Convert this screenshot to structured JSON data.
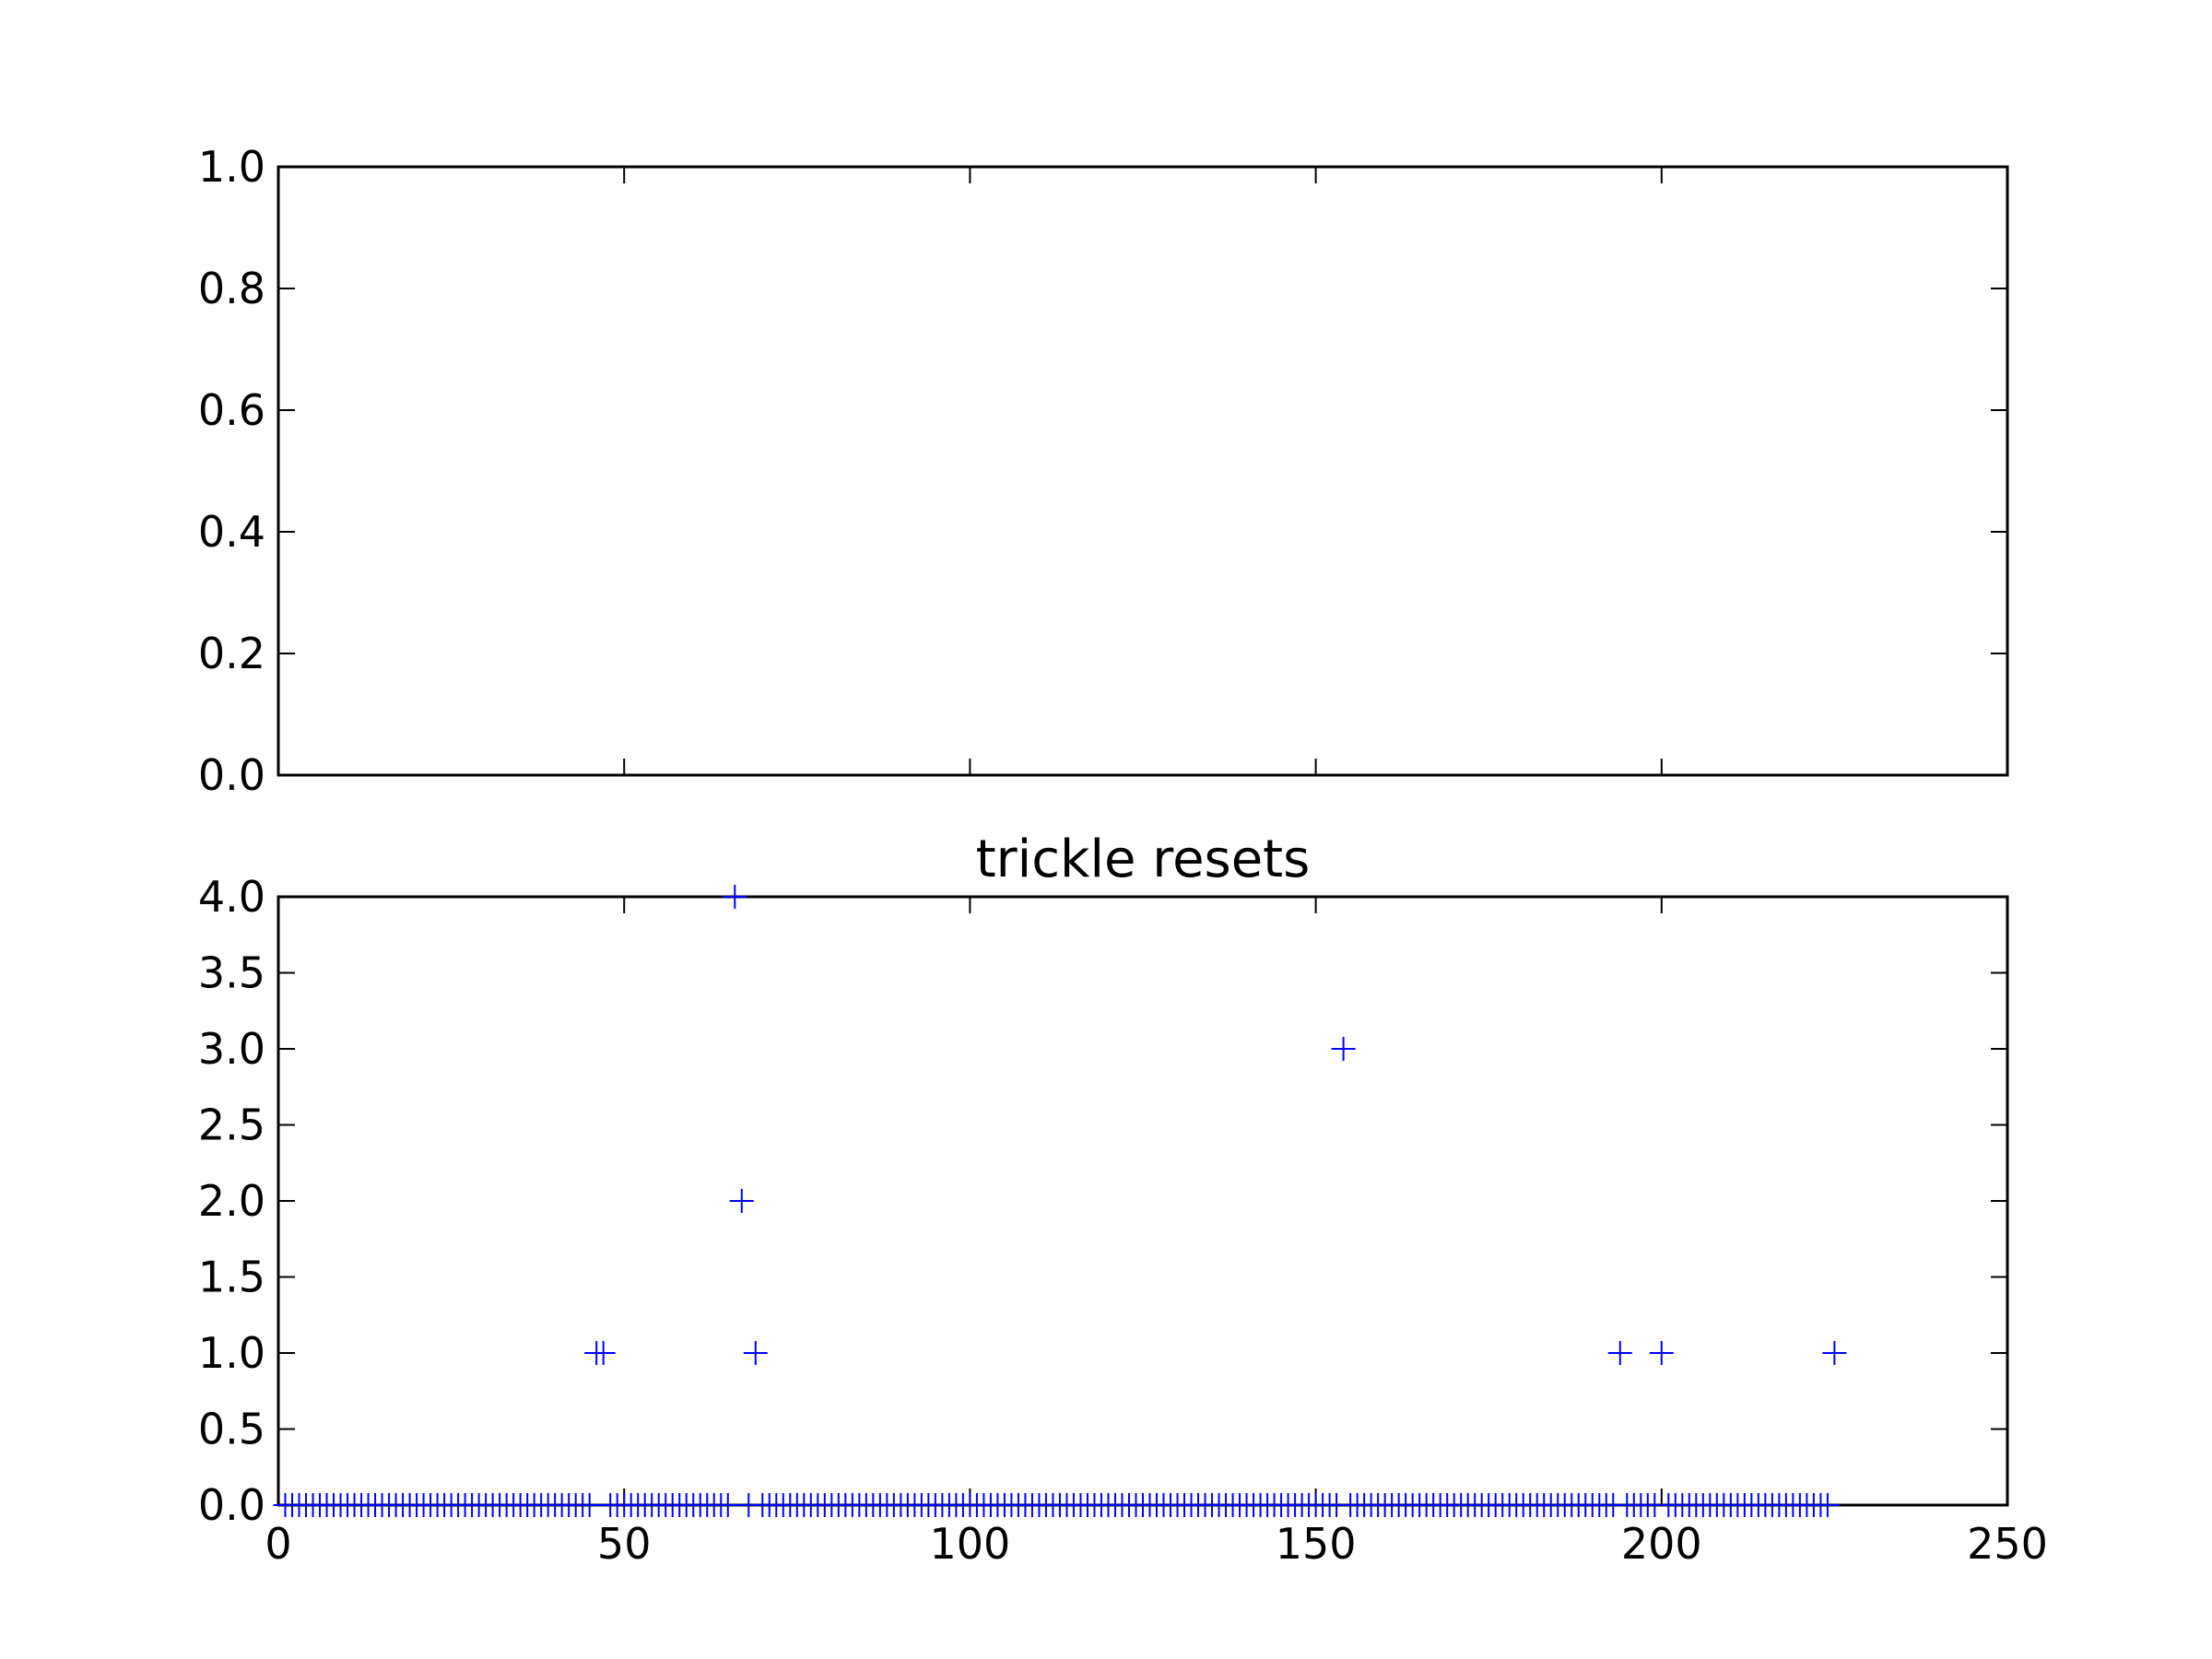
{
  "chart_data": [
    {
      "type": "scatter",
      "title": "",
      "xlabel": "",
      "ylabel": "",
      "xlim": [
        0,
        250
      ],
      "ylim": [
        0.0,
        1.0
      ],
      "xticks": [
        50,
        100,
        150,
        200
      ],
      "xtick_labels_visible": false,
      "yticks": [
        "0.0",
        "0.2",
        "0.4",
        "0.6",
        "0.8",
        "1.0"
      ],
      "grid": false,
      "series": []
    },
    {
      "type": "scatter",
      "title": "trickle resets",
      "xlabel": "",
      "ylabel": "",
      "xlim": [
        0,
        250
      ],
      "ylim": [
        0.0,
        4.0
      ],
      "xticks": [
        "0",
        "50",
        "100",
        "150",
        "200",
        "250"
      ],
      "yticks": [
        "0.0",
        "0.5",
        "1.0",
        "1.5",
        "2.0",
        "2.5",
        "3.0",
        "3.5",
        "4.0"
      ],
      "grid": false,
      "marker": "+",
      "color": "#0000ff",
      "series": [
        {
          "points": [
            [
              46,
              1
            ],
            [
              47,
              1
            ],
            [
              66,
              4
            ],
            [
              67,
              2
            ],
            [
              69,
              1
            ],
            [
              154,
              3
            ],
            [
              194,
              1
            ],
            [
              200,
              1
            ],
            [
              225,
              1
            ]
          ],
          "zero_range": [
            1,
            224
          ],
          "zero_gaps": [
            46,
            47,
            66,
            67,
            69,
            154,
            194,
            200
          ]
        }
      ]
    }
  ]
}
